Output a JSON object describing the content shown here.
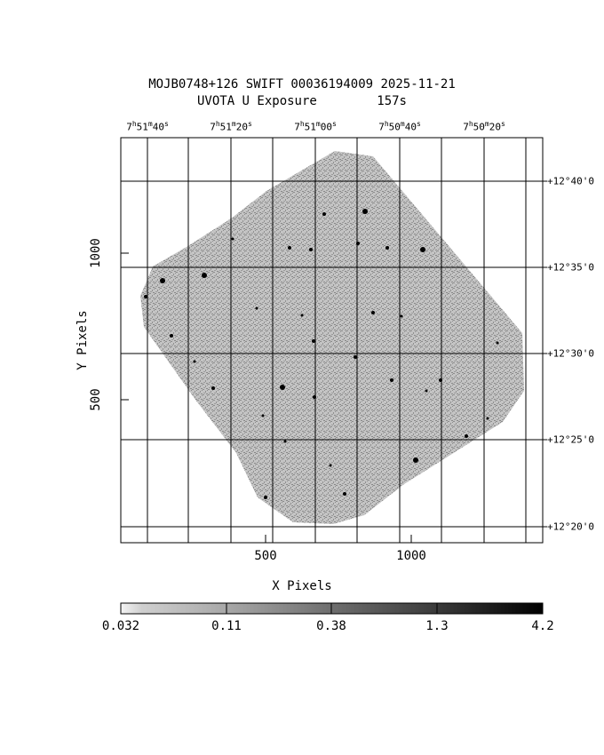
{
  "header": {
    "title_line1": "MOJB0748+126 SWIFT 00036194009 2025-11-21",
    "title_line2": "UVOTA U Exposure        157s"
  },
  "axes": {
    "xlabel": "X Pixels",
    "ylabel": "Y Pixels",
    "x_ticks": [
      "500",
      "1000"
    ],
    "y_ticks": [
      "1000",
      "500"
    ]
  },
  "ra_labels": [
    {
      "h": "7",
      "m": "51",
      "s": "40",
      "sec_symbol": "s"
    },
    {
      "h": "7",
      "m": "51",
      "s": "20",
      "sec_symbol": "s"
    },
    {
      "h": "7",
      "m": "51",
      "s": "00",
      "sec_symbol": "s"
    },
    {
      "h": "7",
      "m": "50",
      "s": "40",
      "sec_symbol": "s"
    },
    {
      "h": "7",
      "m": "50",
      "s": "20",
      "sec_symbol": "s"
    }
  ],
  "dec_labels": [
    "+12°40'0",
    "+12°35'0",
    "+12°30'0",
    "+12°25'0",
    "+12°20'0"
  ],
  "colorbar": {
    "tick_labels": [
      "0.032",
      "0.11",
      "0.38",
      "1.3",
      "4.2"
    ],
    "scale": "log",
    "colormap": "grayscale-inverted"
  },
  "image": {
    "description_colors": {
      "background": "#ffffff",
      "field": "#a8a8a8",
      "stars": "#000000"
    }
  }
}
